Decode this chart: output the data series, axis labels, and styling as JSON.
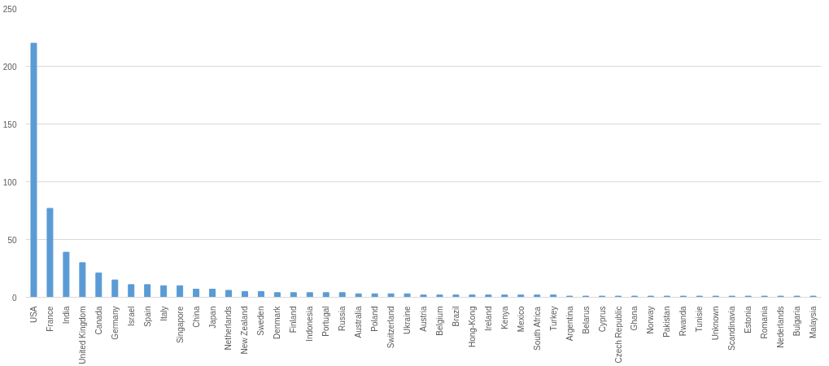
{
  "chart_data": {
    "type": "bar",
    "categories": [
      "USA",
      "France",
      "India",
      "United Kingdom",
      "Canada",
      "Germany",
      "Israel",
      "Spain",
      "Italy",
      "Singapore",
      "China",
      "Japan",
      "Netherlands",
      "New Zealand",
      "Sweden",
      "Denmark",
      "Finland",
      "Indonesia",
      "Portugal",
      "Russia",
      "Australia",
      "Poland",
      "Switzerland",
      "Ukraine",
      "Austria",
      "Belgium",
      "Brazil",
      "Hong-Kong",
      "Ireland",
      "Kenya",
      "Mexico",
      "South Africa",
      "Turkey",
      "Argentina",
      "Belarus",
      "Cyprus",
      "Czech Republic",
      "Ghana",
      "Norway",
      "Pakistan",
      "Rwanda",
      "Tunisie",
      "Unknown",
      "Scandinavia",
      "Estonia",
      "Romania",
      "Nederlands",
      "Bulgaria",
      "Malaysia"
    ],
    "values": [
      220,
      77,
      39,
      30,
      21,
      15,
      11,
      11,
      10,
      10,
      7,
      7,
      6,
      5,
      5,
      4,
      4,
      4,
      4,
      4,
      3,
      3,
      3,
      3,
      2,
      2,
      2,
      2,
      2,
      2,
      2,
      2,
      2,
      1,
      1,
      1,
      1,
      1,
      1,
      1,
      1,
      1,
      1,
      1,
      1,
      1,
      1,
      1,
      1
    ],
    "color": "#5b9bd5",
    "ylim": [
      0,
      250
    ],
    "yticks": [
      0,
      50,
      100,
      150,
      200,
      250
    ],
    "grid": "y"
  }
}
